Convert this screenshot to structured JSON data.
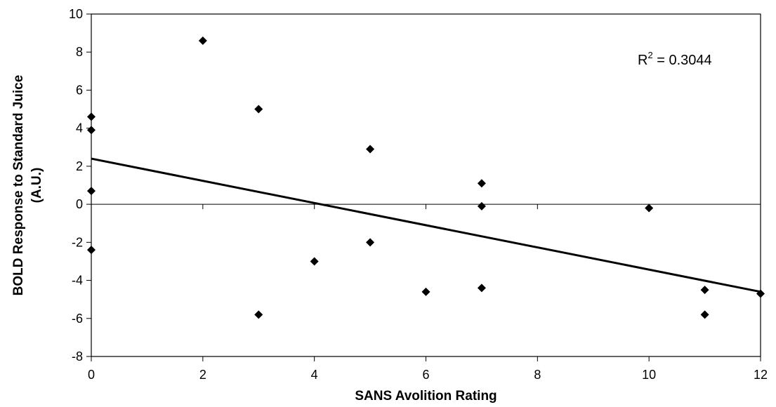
{
  "chart_data": {
    "type": "scatter",
    "xlabel": "SANS Avolition Rating",
    "ylabel_lines": [
      "BOLD Response to Standard Juice",
      "(A.U.)"
    ],
    "xlim": [
      0,
      12
    ],
    "ylim": [
      -8,
      10
    ],
    "xticks": [
      "0",
      "2",
      "4",
      "6",
      "8",
      "10",
      "12"
    ],
    "yticks": [
      "-8",
      "-6",
      "-4",
      "-2",
      "0",
      "2",
      "4",
      "6",
      "8",
      "10"
    ],
    "grid": false,
    "legend": false,
    "zero_line": true,
    "points": [
      {
        "x": 0,
        "y": 4.6
      },
      {
        "x": 0,
        "y": 3.9
      },
      {
        "x": 0,
        "y": 0.7
      },
      {
        "x": 0,
        "y": -2.4
      },
      {
        "x": 2,
        "y": 8.6
      },
      {
        "x": 3,
        "y": 5.0
      },
      {
        "x": 3,
        "y": -5.8
      },
      {
        "x": 4,
        "y": -3.0
      },
      {
        "x": 5,
        "y": 2.9
      },
      {
        "x": 5,
        "y": -2.0
      },
      {
        "x": 6,
        "y": -4.6
      },
      {
        "x": 7,
        "y": 1.1
      },
      {
        "x": 7,
        "y": -0.1
      },
      {
        "x": 7,
        "y": -4.4
      },
      {
        "x": 10,
        "y": -0.2
      },
      {
        "x": 11,
        "y": -4.5
      },
      {
        "x": 11,
        "y": -5.8
      },
      {
        "x": 12,
        "y": -4.7
      }
    ],
    "trendline": {
      "x": [
        0,
        12
      ],
      "y": [
        2.4,
        -4.6
      ]
    },
    "annotation": {
      "prefix": "R",
      "sup": "2",
      "text": " = 0.3044"
    },
    "colors": {
      "marker": "#000000",
      "line": "#000000"
    }
  }
}
